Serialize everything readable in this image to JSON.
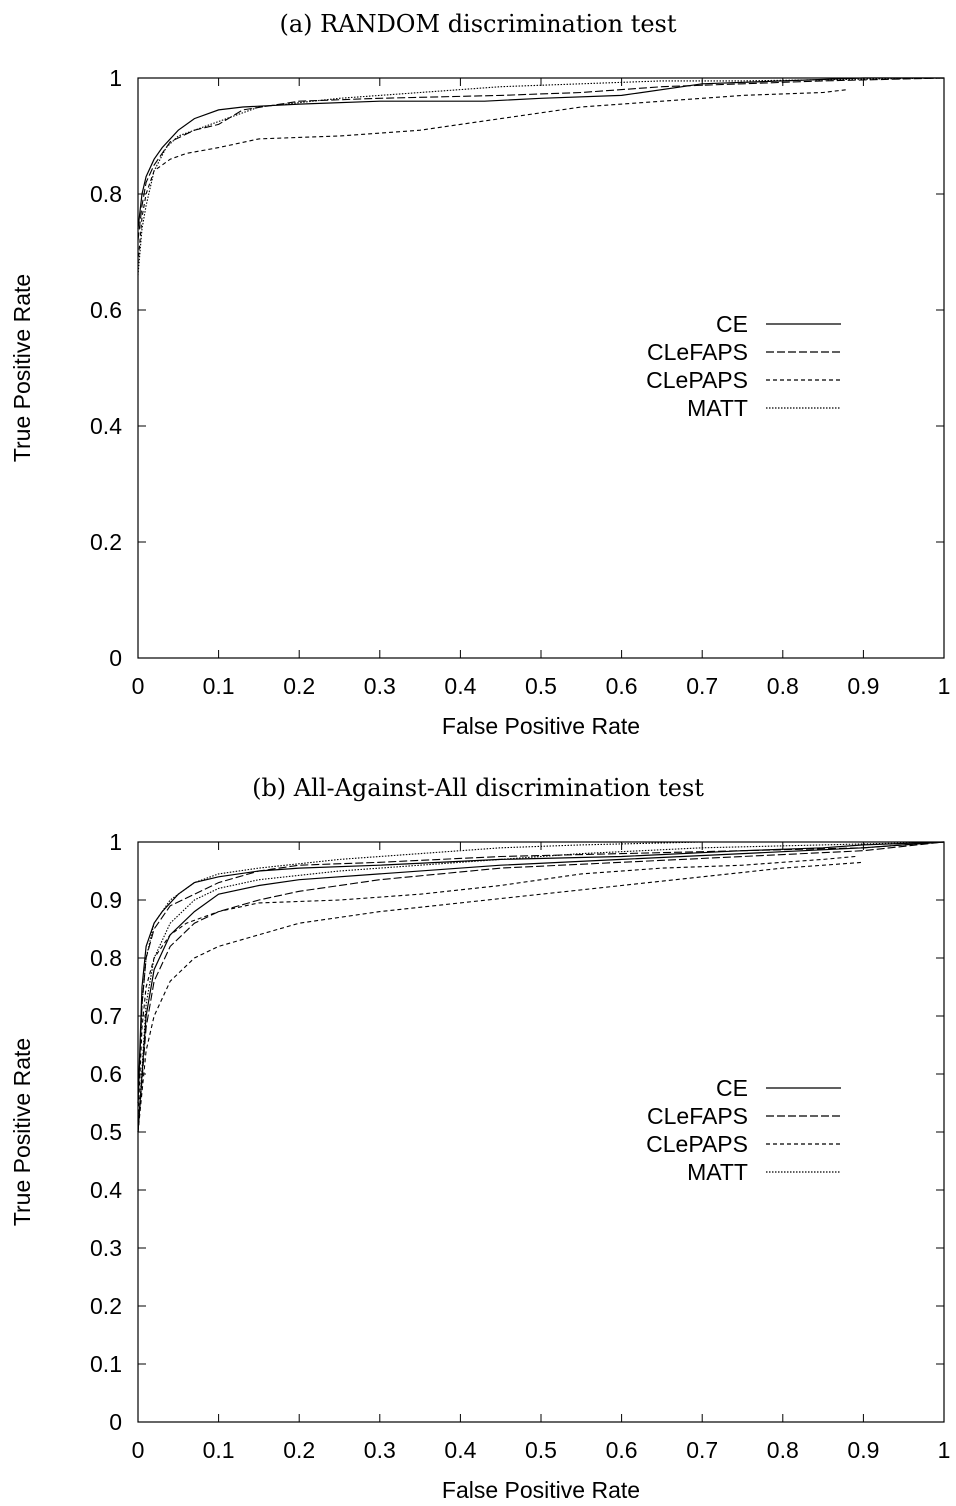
{
  "chart_data": [
    {
      "type": "line",
      "title": "(a) RANDOM discrimination test",
      "xlabel": "False Positive Rate",
      "ylabel": "True Positive Rate",
      "xlim": [
        0,
        1
      ],
      "ylim": [
        0,
        1
      ],
      "xticks": [
        "0",
        "0.1",
        "0.2",
        "0.3",
        "0.4",
        "0.5",
        "0.6",
        "0.7",
        "0.8",
        "0.9",
        "1"
      ],
      "yticks": [
        "0",
        "0.2",
        "0.4",
        "0.6",
        "0.8",
        "1"
      ],
      "legend_position": "center-right",
      "series": [
        {
          "name": "CE",
          "style": "solid",
          "points": [
            [
              0,
              0.74
            ],
            [
              0.005,
              0.8
            ],
            [
              0.01,
              0.83
            ],
            [
              0.02,
              0.86
            ],
            [
              0.03,
              0.88
            ],
            [
              0.05,
              0.91
            ],
            [
              0.07,
              0.93
            ],
            [
              0.1,
              0.945
            ],
            [
              0.13,
              0.95
            ],
            [
              0.2,
              0.955
            ],
            [
              0.3,
              0.96
            ],
            [
              0.43,
              0.96
            ],
            [
              0.5,
              0.965
            ],
            [
              0.6,
              0.97
            ],
            [
              0.7,
              0.99
            ],
            [
              0.8,
              0.995
            ],
            [
              0.9,
              1.0
            ],
            [
              1,
              1.0
            ]
          ]
        },
        {
          "name": "CLeFAPS",
          "style": "dashed",
          "points": [
            [
              0,
              0.72
            ],
            [
              0.005,
              0.78
            ],
            [
              0.01,
              0.82
            ],
            [
              0.02,
              0.85
            ],
            [
              0.04,
              0.89
            ],
            [
              0.07,
              0.91
            ],
            [
              0.1,
              0.92
            ],
            [
              0.13,
              0.945
            ],
            [
              0.2,
              0.96
            ],
            [
              0.3,
              0.965
            ],
            [
              0.45,
              0.97
            ],
            [
              0.55,
              0.975
            ],
            [
              0.65,
              0.985
            ],
            [
              0.75,
              0.99
            ],
            [
              0.85,
              0.995
            ],
            [
              1,
              1.0
            ]
          ]
        },
        {
          "name": "CLePAPS",
          "style": "fine-dashed",
          "points": [
            [
              0,
              0.68
            ],
            [
              0.005,
              0.76
            ],
            [
              0.01,
              0.8
            ],
            [
              0.02,
              0.84
            ],
            [
              0.04,
              0.86
            ],
            [
              0.06,
              0.87
            ],
            [
              0.1,
              0.88
            ],
            [
              0.15,
              0.895
            ],
            [
              0.25,
              0.9
            ],
            [
              0.35,
              0.91
            ],
            [
              0.45,
              0.93
            ],
            [
              0.55,
              0.95
            ],
            [
              0.65,
              0.96
            ],
            [
              0.75,
              0.97
            ],
            [
              0.85,
              0.975
            ],
            [
              0.88,
              0.98
            ]
          ]
        },
        {
          "name": "MATT",
          "style": "dotted",
          "points": [
            [
              0,
              0.66
            ],
            [
              0.005,
              0.74
            ],
            [
              0.01,
              0.78
            ],
            [
              0.02,
              0.84
            ],
            [
              0.035,
              0.88
            ],
            [
              0.05,
              0.9
            ],
            [
              0.1,
              0.925
            ],
            [
              0.15,
              0.95
            ],
            [
              0.25,
              0.965
            ],
            [
              0.35,
              0.975
            ],
            [
              0.45,
              0.985
            ],
            [
              0.55,
              0.99
            ],
            [
              0.65,
              0.995
            ],
            [
              0.75,
              0.995
            ],
            [
              1,
              1.0
            ]
          ]
        }
      ]
    },
    {
      "type": "line",
      "title": "(b) All-Against-All discrimination test",
      "xlabel": "False Positive Rate",
      "ylabel": "True Positive Rate",
      "xlim": [
        0,
        1
      ],
      "ylim": [
        0,
        1
      ],
      "xticks": [
        "0",
        "0.1",
        "0.2",
        "0.3",
        "0.4",
        "0.5",
        "0.6",
        "0.7",
        "0.8",
        "0.9",
        "1"
      ],
      "yticks": [
        "0",
        "0.1",
        "0.2",
        "0.3",
        "0.4",
        "0.5",
        "0.6",
        "0.7",
        "0.8",
        "0.9",
        "1"
      ],
      "legend_position": "center-right",
      "series": [
        {
          "name": "CE",
          "style": "solid",
          "points": [
            [
              0,
              0.55
            ],
            [
              0.005,
              0.75
            ],
            [
              0.01,
              0.82
            ],
            [
              0.02,
              0.86
            ],
            [
              0.03,
              0.88
            ],
            [
              0.05,
              0.91
            ],
            [
              0.07,
              0.93
            ],
            [
              0.1,
              0.94
            ],
            [
              0.15,
              0.95
            ],
            [
              0.2,
              0.955
            ],
            [
              0.3,
              0.96
            ],
            [
              0.45,
              0.97
            ],
            [
              0.6,
              0.975
            ],
            [
              0.75,
              0.985
            ],
            [
              0.85,
              0.99
            ],
            [
              0.9,
              0.995
            ],
            [
              1,
              1.0
            ]
          ]
        },
        {
          "name": "CE",
          "style": "solid",
          "points": [
            [
              0,
              0.5
            ],
            [
              0.01,
              0.7
            ],
            [
              0.02,
              0.78
            ],
            [
              0.04,
              0.84
            ],
            [
              0.07,
              0.88
            ],
            [
              0.1,
              0.91
            ],
            [
              0.15,
              0.925
            ],
            [
              0.2,
              0.935
            ],
            [
              0.3,
              0.945
            ],
            [
              0.45,
              0.96
            ],
            [
              0.6,
              0.97
            ],
            [
              0.75,
              0.98
            ],
            [
              0.9,
              0.99
            ],
            [
              1,
              1.0
            ]
          ]
        },
        {
          "name": "CLeFAPS",
          "style": "dashed",
          "points": [
            [
              0,
              0.55
            ],
            [
              0.005,
              0.72
            ],
            [
              0.01,
              0.8
            ],
            [
              0.02,
              0.85
            ],
            [
              0.04,
              0.89
            ],
            [
              0.07,
              0.91
            ],
            [
              0.1,
              0.93
            ],
            [
              0.15,
              0.95
            ],
            [
              0.2,
              0.96
            ],
            [
              0.3,
              0.965
            ],
            [
              0.45,
              0.975
            ],
            [
              0.6,
              0.98
            ],
            [
              0.75,
              0.985
            ],
            [
              0.9,
              0.99
            ],
            [
              1,
              1.0
            ]
          ]
        },
        {
          "name": "CLeFAPS",
          "style": "dashed",
          "points": [
            [
              0,
              0.5
            ],
            [
              0.01,
              0.68
            ],
            [
              0.02,
              0.76
            ],
            [
              0.04,
              0.82
            ],
            [
              0.07,
              0.86
            ],
            [
              0.1,
              0.88
            ],
            [
              0.15,
              0.9
            ],
            [
              0.2,
              0.915
            ],
            [
              0.3,
              0.935
            ],
            [
              0.45,
              0.955
            ],
            [
              0.6,
              0.965
            ],
            [
              0.75,
              0.975
            ],
            [
              0.9,
              0.985
            ],
            [
              1,
              1.0
            ]
          ]
        },
        {
          "name": "CLePAPS",
          "style": "fine-dashed",
          "points": [
            [
              0,
              0.52
            ],
            [
              0.005,
              0.68
            ],
            [
              0.01,
              0.75
            ],
            [
              0.02,
              0.8
            ],
            [
              0.04,
              0.84
            ],
            [
              0.06,
              0.86
            ],
            [
              0.1,
              0.88
            ],
            [
              0.15,
              0.895
            ],
            [
              0.25,
              0.9
            ],
            [
              0.35,
              0.91
            ],
            [
              0.45,
              0.925
            ],
            [
              0.55,
              0.945
            ],
            [
              0.65,
              0.955
            ],
            [
              0.75,
              0.96
            ],
            [
              0.85,
              0.97
            ],
            [
              0.89,
              0.975
            ]
          ]
        },
        {
          "name": "CLePAPS",
          "style": "fine-dashed",
          "points": [
            [
              0,
              0.5
            ],
            [
              0.01,
              0.64
            ],
            [
              0.02,
              0.7
            ],
            [
              0.04,
              0.76
            ],
            [
              0.07,
              0.8
            ],
            [
              0.1,
              0.82
            ],
            [
              0.15,
              0.84
            ],
            [
              0.2,
              0.86
            ],
            [
              0.3,
              0.88
            ],
            [
              0.4,
              0.895
            ],
            [
              0.5,
              0.91
            ],
            [
              0.6,
              0.925
            ],
            [
              0.7,
              0.94
            ],
            [
              0.8,
              0.955
            ],
            [
              0.9,
              0.965
            ]
          ]
        },
        {
          "name": "MATT",
          "style": "dotted",
          "points": [
            [
              0,
              0.55
            ],
            [
              0.005,
              0.72
            ],
            [
              0.01,
              0.8
            ],
            [
              0.02,
              0.86
            ],
            [
              0.04,
              0.9
            ],
            [
              0.07,
              0.93
            ],
            [
              0.1,
              0.945
            ],
            [
              0.15,
              0.955
            ],
            [
              0.25,
              0.97
            ],
            [
              0.35,
              0.98
            ],
            [
              0.45,
              0.99
            ],
            [
              0.55,
              0.995
            ],
            [
              0.7,
              1.0
            ],
            [
              1,
              1.0
            ]
          ]
        },
        {
          "name": "MATT",
          "style": "dotted",
          "points": [
            [
              0,
              0.5
            ],
            [
              0.01,
              0.72
            ],
            [
              0.02,
              0.8
            ],
            [
              0.04,
              0.86
            ],
            [
              0.07,
              0.9
            ],
            [
              0.1,
              0.92
            ],
            [
              0.15,
              0.935
            ],
            [
              0.25,
              0.95
            ],
            [
              0.35,
              0.96
            ],
            [
              0.45,
              0.97
            ],
            [
              0.55,
              0.98
            ],
            [
              0.7,
              0.99
            ],
            [
              0.85,
              0.995
            ],
            [
              1,
              1.0
            ]
          ]
        }
      ]
    }
  ]
}
